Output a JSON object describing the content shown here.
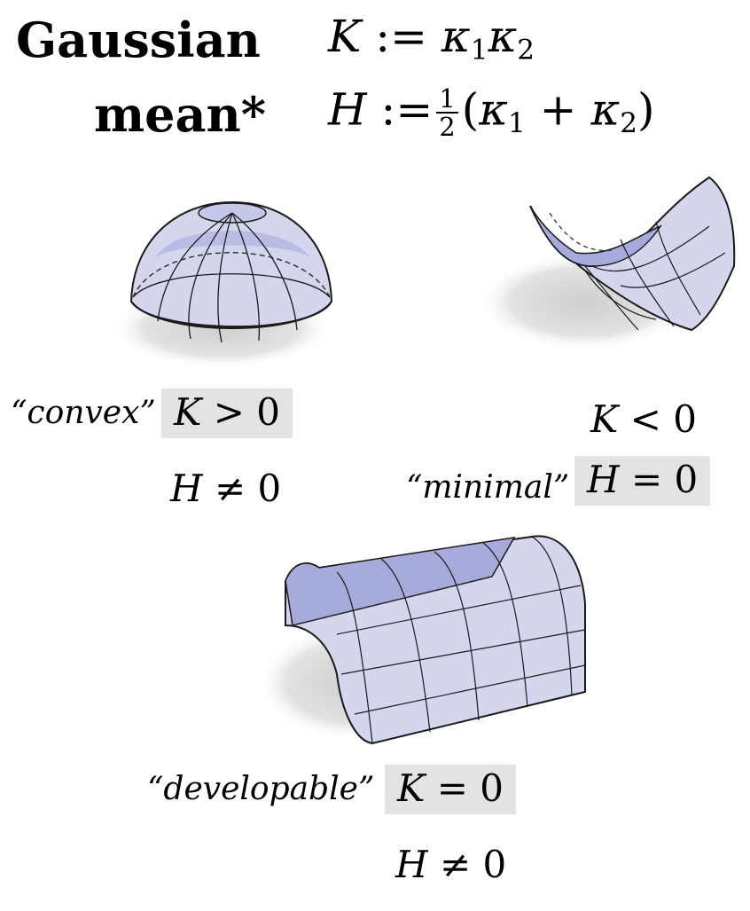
{
  "definitions": {
    "gaussian": {
      "label": "Gaussian",
      "symbol": "K",
      "assign": ":=",
      "k1": "κ",
      "k1_sub": "1",
      "k2": "κ",
      "k2_sub": "2"
    },
    "mean": {
      "label": "mean*",
      "symbol": "H",
      "assign": ":=",
      "frac_num": "1",
      "frac_den": "2",
      "open": "(",
      "k1": "κ",
      "k1_sub": "1",
      "plus": "+",
      "k2": "κ",
      "k2_sub": "2",
      "close": ")"
    }
  },
  "examples": {
    "convex": {
      "name": "“convex”",
      "k_var": "K",
      "k_rel": "> 0",
      "h_var": "H",
      "h_rel": "≠ 0"
    },
    "minimal": {
      "name": "“minimal”",
      "k_var": "K",
      "k_rel": "< 0",
      "h_var": "H",
      "h_rel": "= 0"
    },
    "developable": {
      "name": "“developable”",
      "k_var": "K",
      "k_rel": "= 0",
      "h_var": "H",
      "h_rel": "≠ 0"
    }
  },
  "colors": {
    "surface_fill": "#d4d6ee",
    "surface_dark": "#9a9fd2",
    "shadow": "#d9d9d9",
    "highlight_box": "#e3e3e3",
    "outline": "#1a1a1a"
  },
  "illustrations": {
    "hemisphere": "sphere-cap-icon",
    "saddle": "saddle-surface-icon",
    "cylinder": "half-cylinder-icon"
  }
}
